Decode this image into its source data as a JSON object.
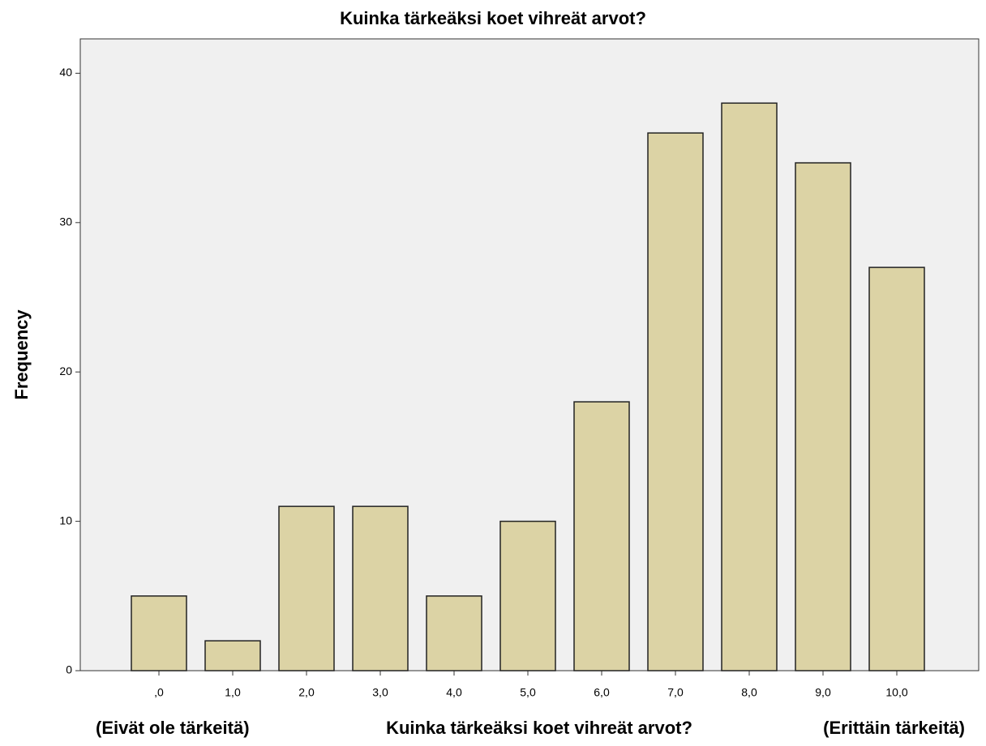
{
  "chart_data": {
    "type": "bar",
    "title": "Kuinka tärkeäksi koet vihreät arvot?",
    "y_label": "Frequency",
    "x_label": "Kuinka tärkeäksi koet vihreät arvot?",
    "x_label_left": "(Eivät ole tärkeitä)",
    "x_label_right": "(Erittäin tärkeitä)",
    "categories": [
      ",0",
      "1,0",
      "2,0",
      "3,0",
      "4,0",
      "5,0",
      "6,0",
      "7,0",
      "8,0",
      "9,0",
      "10,0"
    ],
    "values": [
      5,
      2,
      11,
      11,
      5,
      10,
      18,
      36,
      38,
      34,
      27
    ],
    "color": "#dcd3a5",
    "ylim": [
      0,
      42.3
    ],
    "yticks": [
      0,
      10,
      20,
      30,
      40
    ],
    "grid": false
  }
}
